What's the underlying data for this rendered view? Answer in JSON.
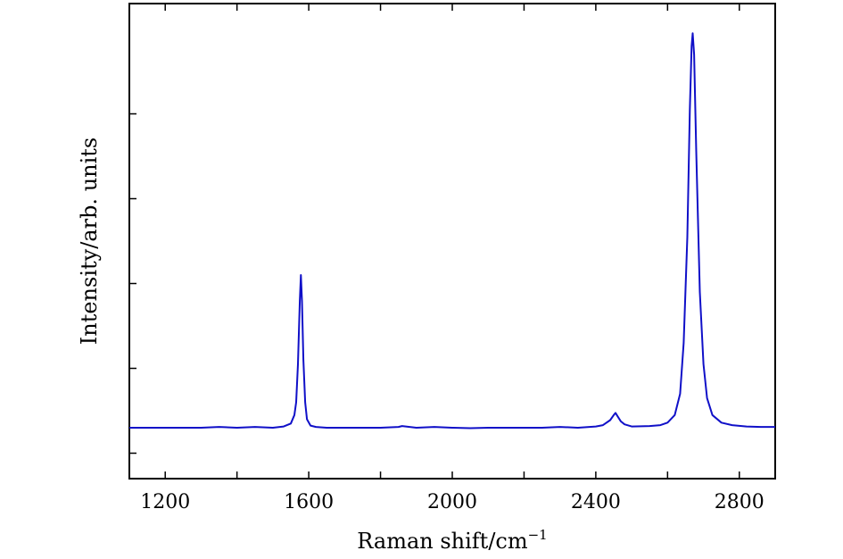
{
  "chart_data": {
    "type": "line",
    "title": "",
    "xlabel": "Raman shift/cm",
    "xlabel_sup": "−1",
    "ylabel": "Intensity/arb. units",
    "xlim": [
      1100,
      2900
    ],
    "ylim": [
      -0.12,
      1.0
    ],
    "x_ticks": [
      1200,
      1400,
      1600,
      1800,
      2000,
      2200,
      2400,
      2600,
      2800
    ],
    "x_tick_labels": [
      "1200",
      "",
      "1600",
      "",
      "2000",
      "",
      "2400",
      "",
      "2800"
    ],
    "y_ticks": [
      -0.06,
      0.14,
      0.34,
      0.54,
      0.74
    ],
    "y_tick_labels": [
      "",
      "",
      "",
      "",
      ""
    ],
    "grid": false,
    "legend": "none",
    "series": [
      {
        "color": "#1010c8",
        "x": [
          1100,
          1150,
          1200,
          1250,
          1300,
          1350,
          1400,
          1450,
          1500,
          1530,
          1550,
          1560,
          1565,
          1570,
          1575,
          1578,
          1581,
          1585,
          1590,
          1595,
          1605,
          1620,
          1650,
          1700,
          1750,
          1800,
          1850,
          1860,
          1900,
          1950,
          2000,
          2050,
          2100,
          2150,
          2200,
          2250,
          2300,
          2350,
          2400,
          2420,
          2440,
          2450,
          2455,
          2460,
          2470,
          2480,
          2500,
          2550,
          2580,
          2600,
          2620,
          2635,
          2645,
          2655,
          2662,
          2667,
          2670,
          2674,
          2680,
          2690,
          2700,
          2710,
          2725,
          2750,
          2780,
          2820,
          2860,
          2900
        ],
        "y": [
          0.0,
          0.0,
          0.0,
          0.0,
          0.0,
          0.002,
          0.0,
          0.002,
          0.0,
          0.003,
          0.01,
          0.03,
          0.06,
          0.15,
          0.3,
          0.36,
          0.3,
          0.16,
          0.06,
          0.02,
          0.005,
          0.002,
          0.0,
          0.0,
          0.0,
          0.0,
          0.002,
          0.004,
          0.0,
          0.002,
          0.0,
          -0.001,
          0.0,
          0.0,
          0.0,
          0.0,
          0.002,
          0.0,
          0.003,
          0.006,
          0.018,
          0.03,
          0.035,
          0.028,
          0.015,
          0.008,
          0.003,
          0.004,
          0.006,
          0.012,
          0.03,
          0.08,
          0.2,
          0.45,
          0.75,
          0.9,
          0.93,
          0.88,
          0.65,
          0.32,
          0.15,
          0.07,
          0.03,
          0.012,
          0.006,
          0.003,
          0.002,
          0.002
        ]
      }
    ]
  }
}
